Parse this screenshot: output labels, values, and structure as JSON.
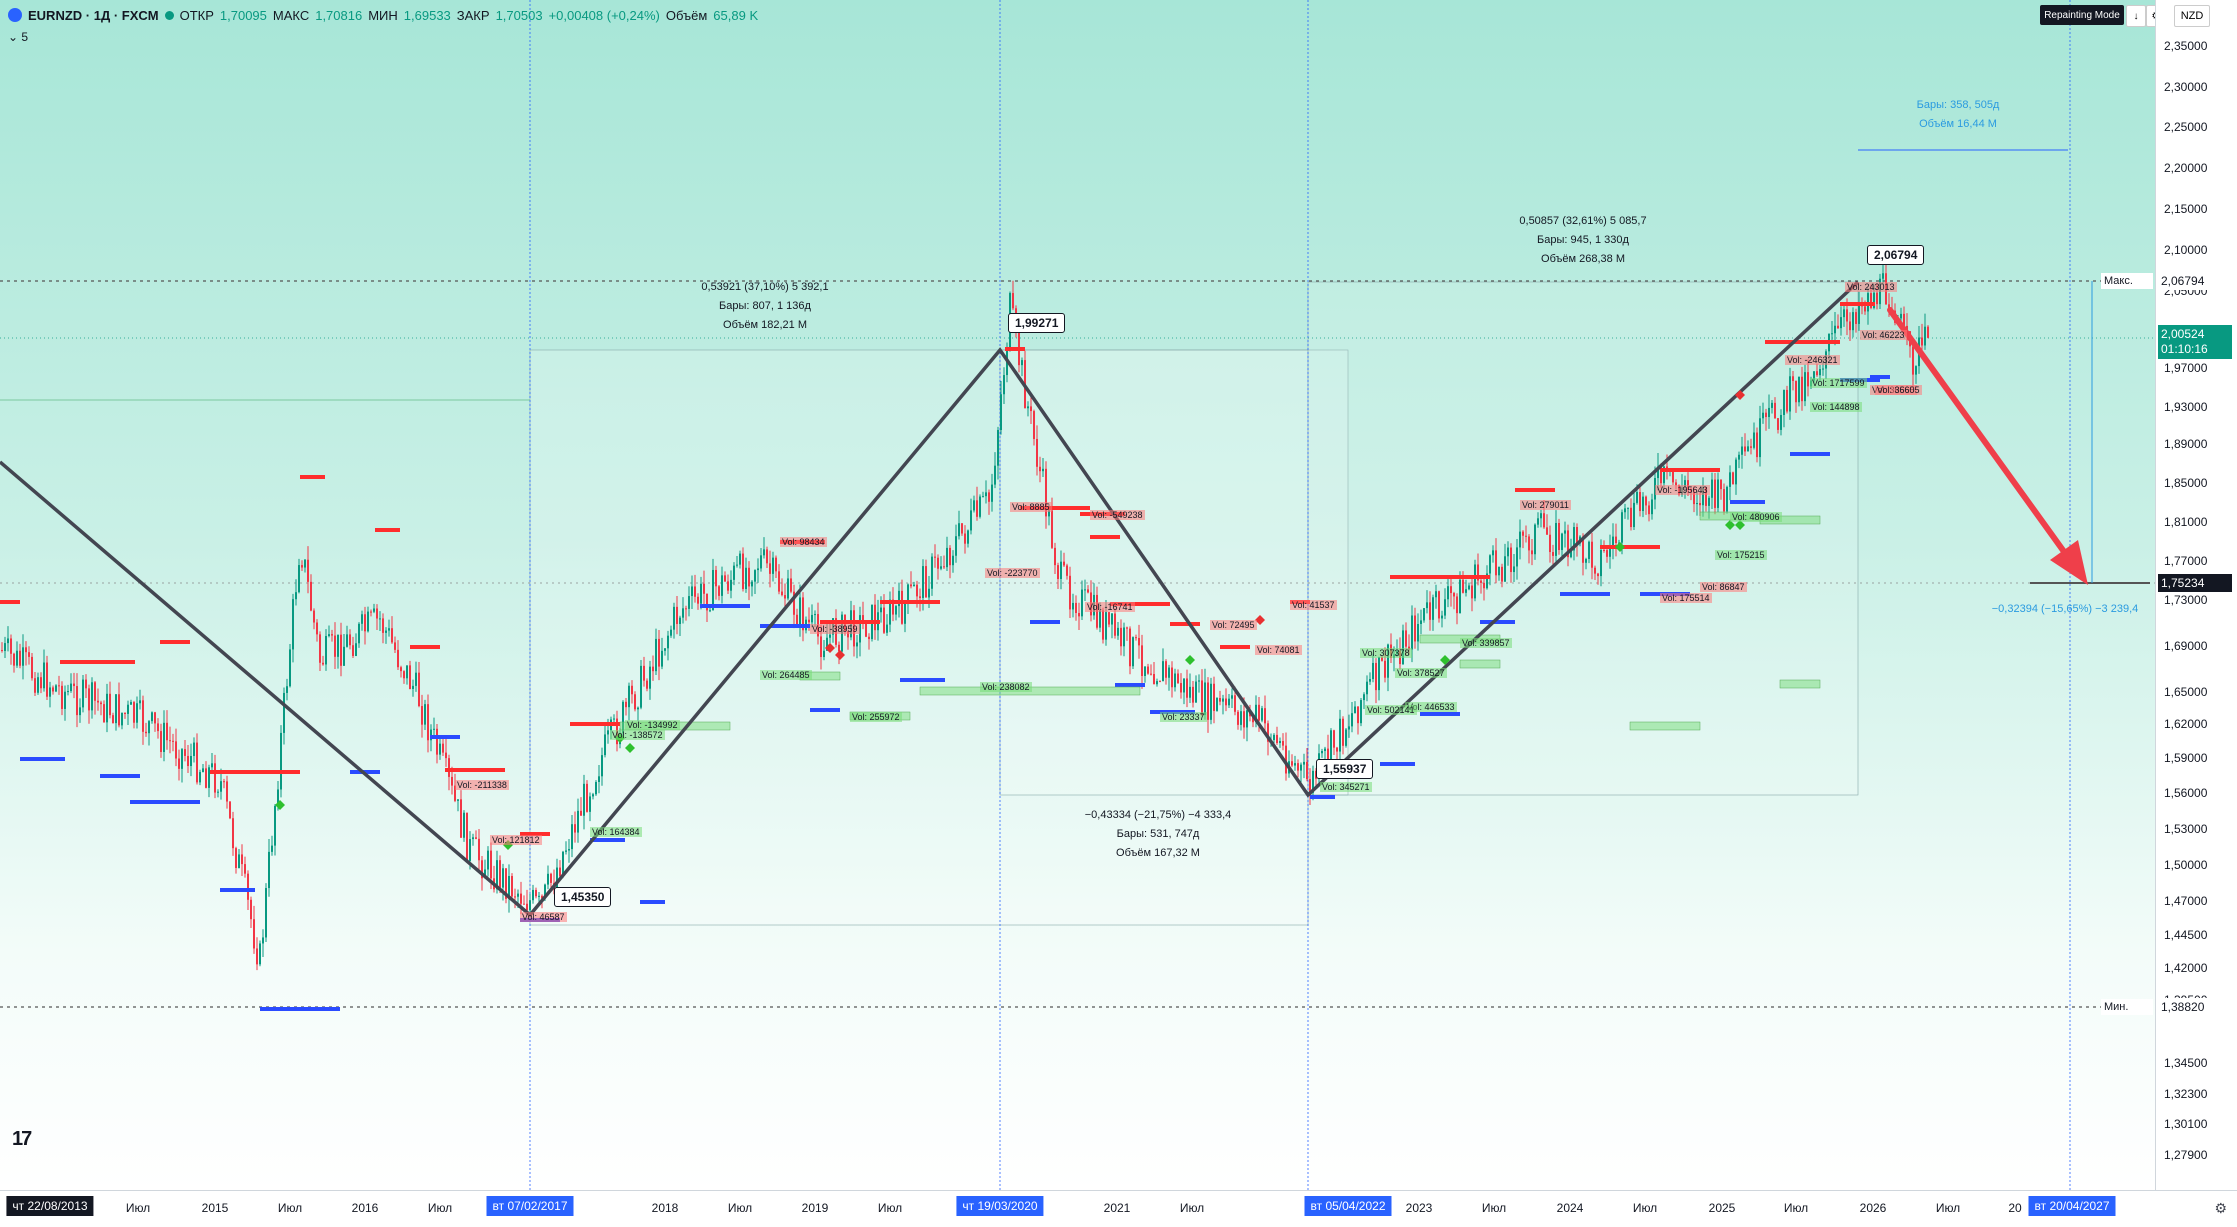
{
  "header": {
    "symbol": "EURNZD · 1Д · FXCM",
    "open_label": "ОТКР",
    "open_value": "1,70095",
    "high_label": "МАКС",
    "high_value": "1,70816",
    "low_label": "МИН",
    "low_value": "1,69533",
    "close_label": "ЗАКР",
    "close_value": "1,70503",
    "change": "+0,00408 (+0,24%)",
    "volume_label": "Объём",
    "volume_value": "65,89 K",
    "indicators_toggle": "5"
  },
  "toolbar": {
    "repainting_label": "Repainting Mode",
    "download_icon": "↓",
    "settings_icon": "⚙",
    "snapshot_icon": "▭",
    "currency": "NZD"
  },
  "price_axis": {
    "ticks": [
      "2,35000",
      "2,30000",
      "2,25000",
      "2,20000",
      "2,15000",
      "2,10000",
      "2,05000",
      "1,97000",
      "1,93000",
      "1,89000",
      "1,85000",
      "1,81000",
      "1,77000",
      "1,73000",
      "1,69000",
      "1,65000",
      "1,62000",
      "1,59000",
      "1,56000",
      "1,53000",
      "1,50000",
      "1,47000",
      "1,44500",
      "1,42000",
      "1,39500",
      "1,34500",
      "1,32300",
      "1,30100",
      "1,27900"
    ],
    "max_label": "Макс.",
    "max_value": "2,06794",
    "min_label": "Мин.",
    "min_value": "1,38820",
    "current_price": "2,00524",
    "countdown": "01:10:16",
    "target_price": "1,75234"
  },
  "time_axis": {
    "labels": [
      "Июл",
      "2015",
      "Июл",
      "2016",
      "Июл",
      "2018",
      "Июл",
      "2019",
      "Июл",
      "2021",
      "Июл",
      "2023",
      "Июл",
      "2024",
      "Июл",
      "2025",
      "Июл",
      "2026",
      "Июл",
      "20"
    ],
    "badges": [
      "чт 22/08/2013",
      "вт 07/02/2017",
      "чт 19/03/2020",
      "вт 05/04/2022",
      "вт 20/04/2027"
    ]
  },
  "annotations": {
    "range1": [
      "0,53921 (37,10%) 5 392,1",
      "Бары: 807, 1 136д",
      "Объём 182,21 M"
    ],
    "range2": [
      "−0,43334 (−21,75%) −4 333,4",
      "Бары: 531, 747д",
      "Объём 167,32 M"
    ],
    "range3": [
      "0,50857 (32,61%) 5 085,7",
      "Бары: 945, 1 330д",
      "Объём 268,38 M"
    ],
    "forecast_time": [
      "Бары: 358, 505д",
      "Объём 16,44 M"
    ],
    "forecast_price": "−0,32394 (−15,65%) −3 239,4"
  },
  "pivots": [
    "1,45350",
    "1,99271",
    "1,55937",
    "2,06794"
  ],
  "volume_labels": [
    {
      "t": "Vol: -211338",
      "c": "r"
    },
    {
      "t": "Vol: 121812",
      "c": "r"
    },
    {
      "t": "Vol: 164384",
      "c": "g"
    },
    {
      "t": "Vol: 46587",
      "c": "r"
    },
    {
      "t": "Vol: -134992",
      "c": "g"
    },
    {
      "t": "Vol: -138572",
      "c": "g"
    },
    {
      "t": "Vol: 98434",
      "c": "r"
    },
    {
      "t": "Vol: -38959",
      "c": "r"
    },
    {
      "t": "Vol: 264485",
      "c": "g"
    },
    {
      "t": "Vol: 255972",
      "c": "g"
    },
    {
      "t": "Vol: -223770",
      "c": "r"
    },
    {
      "t": "Vol: 238082",
      "c": "g"
    },
    {
      "t": "Vol: 8885",
      "c": "r"
    },
    {
      "t": "Vol: -549238",
      "c": "r"
    },
    {
      "t": "Vol: -16741",
      "c": "r"
    },
    {
      "t": "Vol: 72495",
      "c": "r"
    },
    {
      "t": "Vol: 74081",
      "c": "r"
    },
    {
      "t": "Vol: 41537",
      "c": "r"
    },
    {
      "t": "Vol: 23337",
      "c": "g"
    },
    {
      "t": "Vol: 345271",
      "c": "g"
    },
    {
      "t": "Vol: 307378",
      "c": "g"
    },
    {
      "t": "Vol: 378527",
      "c": "g"
    },
    {
      "t": "Vol: 446533",
      "c": "g"
    },
    {
      "t": "Vol: 502141",
      "c": "g"
    },
    {
      "t": "Vol: 339857",
      "c": "g"
    },
    {
      "t": "Vol: 279011",
      "c": "r"
    },
    {
      "t": "Vol: -195643",
      "c": "r"
    },
    {
      "t": "Vol: 175215",
      "c": "g"
    },
    {
      "t": "Vol: 480906",
      "c": "g"
    },
    {
      "t": "Vol: 175514",
      "c": "r"
    },
    {
      "t": "Vol: 86847",
      "c": "r"
    },
    {
      "t": "Vol: -246321",
      "c": "r"
    },
    {
      "t": "Vol: 144898",
      "c": "g"
    },
    {
      "t": "Vol: 36565",
      "c": "r"
    },
    {
      "t": "Vol: 46223",
      "c": "r"
    },
    {
      "t": "Vol: 36605",
      "c": "r"
    },
    {
      "t": "Vol: 1717599",
      "c": "g"
    },
    {
      "t": "Vol: 243013",
      "c": "r"
    }
  ],
  "colors": {
    "bull": "#089981",
    "bear": "#f23645",
    "trend": "#434651",
    "forecast": "#ef3f4a",
    "resistance": "#ff2d2d",
    "support": "#2a4bff"
  }
}
